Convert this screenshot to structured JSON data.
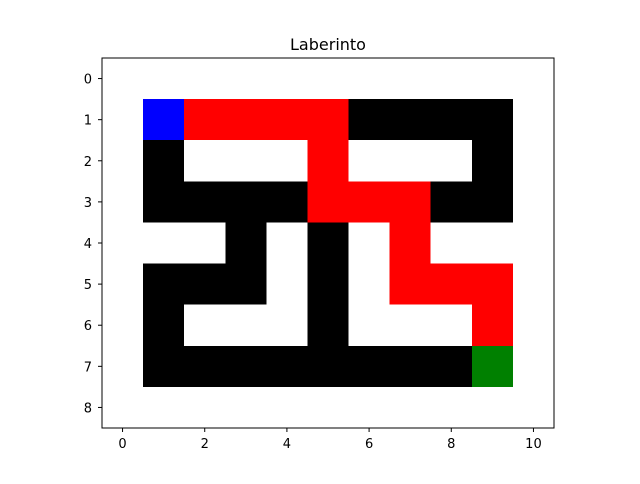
{
  "chart_data": {
    "type": "heatmap",
    "title": "Laberinto",
    "xlabel": "",
    "ylabel": "",
    "xlim": [
      -0.5,
      10.5
    ],
    "ylim": [
      8.5,
      -0.5
    ],
    "x_ticks": [
      0,
      2,
      4,
      6,
      8,
      10
    ],
    "y_ticks": [
      0,
      1,
      2,
      3,
      4,
      5,
      6,
      7,
      8
    ],
    "grid": false,
    "legend": "none",
    "colors": {
      "0": "#ffffff",
      "1": "#000000",
      "2": "#ff0000",
      "3": "#0000ff",
      "4": "#008000"
    },
    "values": [
      [
        0,
        0,
        0,
        0,
        0,
        0,
        0,
        0,
        0,
        0,
        0
      ],
      [
        0,
        3,
        2,
        2,
        2,
        2,
        1,
        1,
        1,
        1,
        0
      ],
      [
        0,
        1,
        0,
        0,
        0,
        2,
        0,
        0,
        0,
        1,
        0
      ],
      [
        0,
        1,
        1,
        1,
        1,
        2,
        2,
        2,
        1,
        1,
        0
      ],
      [
        0,
        0,
        0,
        1,
        0,
        1,
        0,
        2,
        0,
        0,
        0
      ],
      [
        0,
        1,
        1,
        1,
        0,
        1,
        0,
        2,
        2,
        2,
        0
      ],
      [
        0,
        1,
        0,
        0,
        0,
        1,
        0,
        0,
        0,
        2,
        0
      ],
      [
        0,
        1,
        1,
        1,
        1,
        1,
        1,
        1,
        1,
        4,
        0
      ],
      [
        0,
        0,
        0,
        0,
        0,
        0,
        0,
        0,
        0,
        0,
        0
      ]
    ]
  }
}
